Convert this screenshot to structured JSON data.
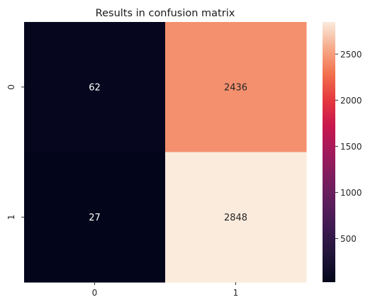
{
  "chart_data": {
    "type": "heatmap",
    "title": "Results in confusion matrix",
    "xlabel": "",
    "ylabel": "",
    "x_categories": [
      "0",
      "1"
    ],
    "y_categories": [
      "0",
      "1"
    ],
    "values": [
      [
        62,
        2436
      ],
      [
        27,
        2848
      ]
    ],
    "annotations": true,
    "colormap": "rocket",
    "colorbar": {
      "vmin": 27,
      "vmax": 2848,
      "ticks": [
        500,
        1000,
        1500,
        2000,
        2500
      ],
      "tick_labels": [
        "500",
        "1000",
        "1500",
        "2000",
        "2500"
      ]
    },
    "grid": false,
    "annotation_colors": {
      "on_dark": "#ffffff",
      "on_light": "#262626"
    }
  }
}
